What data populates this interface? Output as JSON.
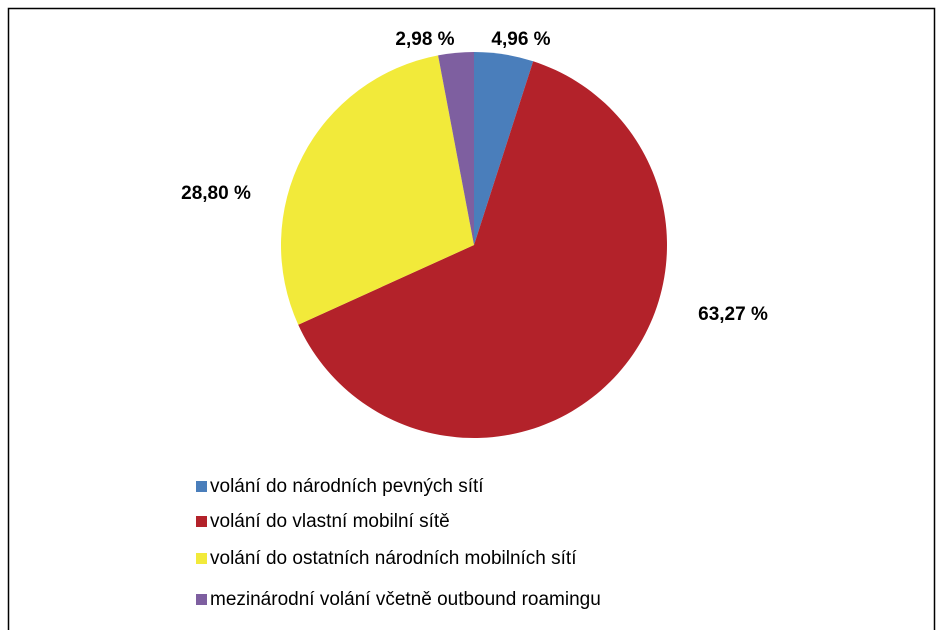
{
  "chart_data": {
    "type": "pie",
    "categories": [
      "volání do národních pevných sítí",
      "volání do vlastní mobilní sítě",
      "volání do ostatních národních mobilních sítí",
      "mezinárodní volání včetně outbound roamingu"
    ],
    "values": [
      4.96,
      63.27,
      28.8,
      2.98
    ],
    "value_labels": [
      "4,96 %",
      "63,27 %",
      "28,80 %",
      "2,98 %"
    ],
    "colors": [
      "#4a7ebb",
      "#b3222a",
      "#f2ea3a",
      "#7e5fa0"
    ],
    "legend": "bottom"
  }
}
